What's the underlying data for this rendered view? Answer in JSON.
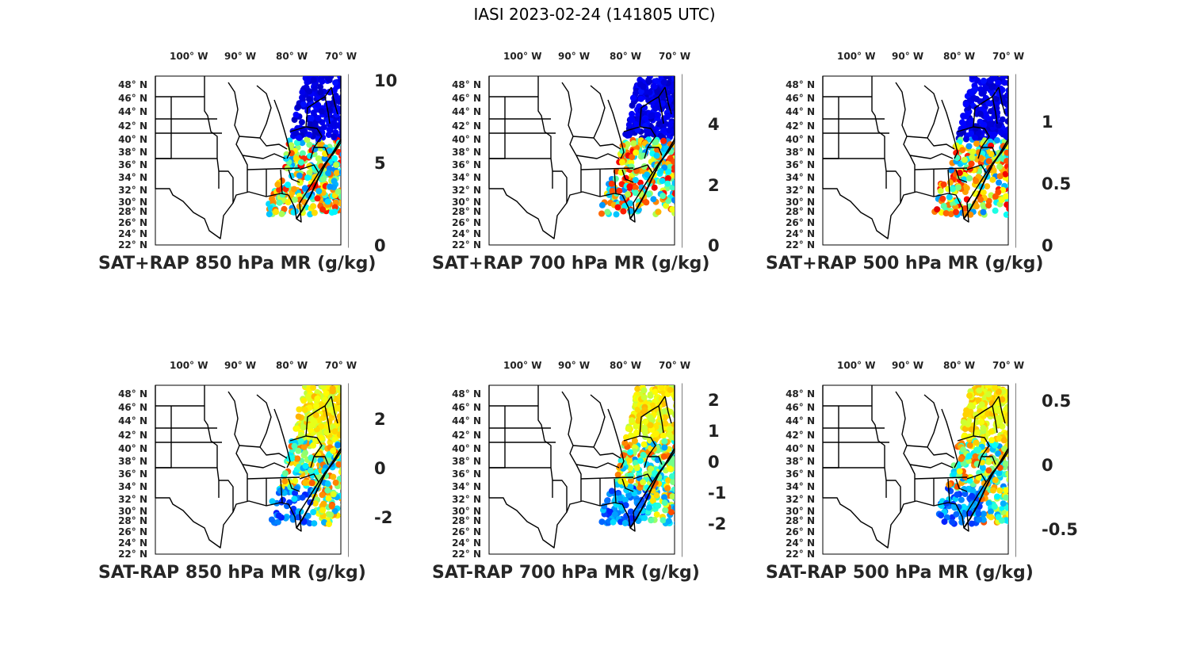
{
  "figure_title": "IASI 2023-02-24 (141805 UTC)",
  "lon_ticks": [
    "100° W",
    "90° W",
    "80° W",
    "70° W"
  ],
  "lat_ticks": [
    "48° N",
    "46° N",
    "44° N",
    "42° N",
    "40° N",
    "38° N",
    "36° N",
    "34° N",
    "32° N",
    "30° N",
    "28° N",
    "26° N",
    "24° N",
    "22° N"
  ],
  "colormap": "jet",
  "panels": [
    {
      "id": "p1",
      "title": "SAT+RAP 850 hPa MR (g/kg)",
      "clim": [
        0,
        10.5
      ],
      "cb_ticks": [
        "0",
        "5",
        "10"
      ],
      "field": "sum"
    },
    {
      "id": "p2",
      "title": "SAT+RAP 700 hPa MR (g/kg)",
      "clim": [
        0,
        5.7
      ],
      "cb_ticks": [
        "0",
        "2",
        "4"
      ],
      "field": "sum"
    },
    {
      "id": "p3",
      "title": "SAT+RAP 500 hPa MR (g/kg)",
      "clim": [
        0,
        1.4
      ],
      "cb_ticks": [
        "0",
        "0.5",
        "1"
      ],
      "field": "sum"
    },
    {
      "id": "p4",
      "title": "SAT-RAP 850 hPa MR (g/kg)",
      "clim": [
        -3.5,
        3.5
      ],
      "cb_ticks": [
        "-2",
        "0",
        "2"
      ],
      "field": "diff"
    },
    {
      "id": "p5",
      "title": "SAT-RAP 700 hPa MR (g/kg)",
      "clim": [
        -3,
        2.6
      ],
      "cb_ticks": [
        "-2",
        "-1",
        "0",
        "1",
        "2"
      ],
      "field": "diff"
    },
    {
      "id": "p6",
      "title": "SAT-RAP 500 hPa MR (g/kg)",
      "clim": [
        -0.7,
        0.65
      ],
      "cb_ticks": [
        "-0.5",
        "0",
        "0.5"
      ],
      "field": "diff"
    }
  ]
}
